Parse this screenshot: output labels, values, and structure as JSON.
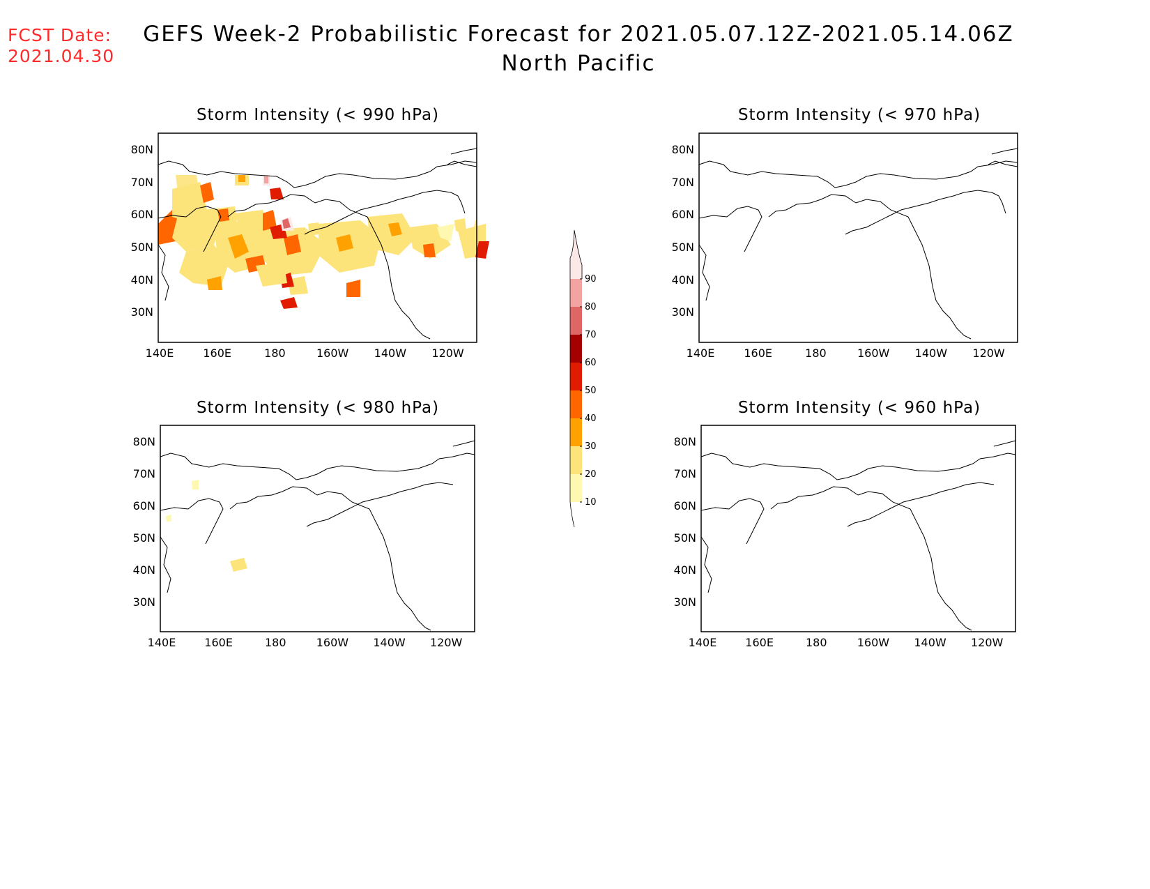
{
  "header": {
    "fcst_label": "FCST Date:",
    "fcst_date": "2021.04.30",
    "title_line1": "GEFS Week-2 Probabilistic Forecast for 2021.05.07.12Z-2021.05.14.06Z",
    "title_line2": "North Pacific"
  },
  "panels": [
    {
      "title": "Storm Intensity (< 990 hPa)"
    },
    {
      "title": "Storm Intensity (< 970 hPa)"
    },
    {
      "title": "Storm Intensity (< 980 hPa)"
    },
    {
      "title": "Storm Intensity (< 960 hPa)"
    }
  ],
  "axes": {
    "lat_labels": [
      "80N",
      "70N",
      "60N",
      "50N",
      "40N",
      "30N"
    ],
    "lon_labels": [
      "140E",
      "160E",
      "180",
      "160W",
      "140W",
      "120W"
    ]
  },
  "colorbar": {
    "labels": [
      "90",
      "80",
      "70",
      "60",
      "50",
      "40",
      "30",
      "20",
      "10"
    ],
    "colors": [
      "#fde8e8",
      "#f4a3a3",
      "#e06666",
      "#a50000",
      "#e01b00",
      "#ff6600",
      "#ffa200",
      "#fce37a",
      "#fff8b0"
    ]
  }
}
